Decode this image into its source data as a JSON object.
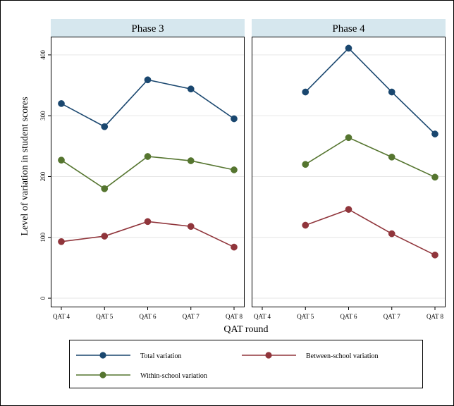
{
  "chart_data": {
    "type": "line",
    "ylabel": "Level of variation in student scores",
    "xlabel": "QAT round",
    "ylim": [
      -15,
      430
    ],
    "yticks": [
      0,
      100,
      200,
      300,
      400
    ],
    "grid": true,
    "legend_position": "bottom",
    "panels": [
      {
        "title": "Phase 3",
        "categories": [
          "QAT 4",
          "QAT 5",
          "QAT 6",
          "QAT 7",
          "QAT 8"
        ],
        "series": [
          {
            "name": "Total variation",
            "color": "#1a476f",
            "values": [
              320,
              282,
              359,
              344,
              295
            ]
          },
          {
            "name": "Between-school variation",
            "color": "#90353b",
            "values": [
              93,
              102,
              126,
              118,
              84
            ]
          },
          {
            "name": "Within-school variation",
            "color": "#55752f",
            "values": [
              227,
              180,
              233,
              226,
              211
            ]
          }
        ]
      },
      {
        "title": "Phase 4",
        "categories": [
          "QAT 4",
          "QAT 5",
          "QAT 6",
          "QAT 7",
          "QAT 8"
        ],
        "series": [
          {
            "name": "Total variation",
            "color": "#1a476f",
            "values": [
              null,
              339,
              411,
              339,
              270
            ]
          },
          {
            "name": "Between-school variation",
            "color": "#90353b",
            "values": [
              null,
              120,
              146,
              106,
              71
            ]
          },
          {
            "name": "Within-school variation",
            "color": "#55752f",
            "values": [
              null,
              220,
              264,
              232,
              199
            ]
          }
        ]
      }
    ],
    "legend": [
      {
        "label": "Total variation",
        "color": "#1a476f"
      },
      {
        "label": "Between-school variation",
        "color": "#90353b"
      },
      {
        "label": "Within-school variation",
        "color": "#55752f"
      }
    ]
  },
  "colors": {
    "strip_fill": "#d6e7ee",
    "grid": "#e6e6e6",
    "frame": "#000000"
  }
}
